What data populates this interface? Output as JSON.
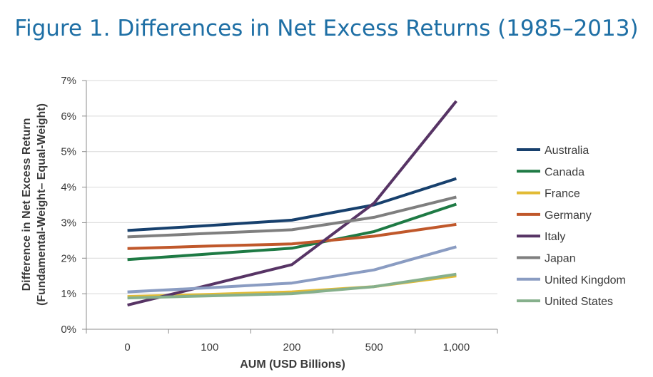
{
  "title": "Figure 1. Differences in Net Excess Returns (1985–2013)",
  "chart_data": {
    "type": "line",
    "title": "Figure 1. Differences in Net Excess Returns (1985–2013)",
    "xlabel": "AUM (USD Billions)",
    "ylabel_line1": "Difference in Net Excess Return",
    "ylabel_line2": "(Fundamental-Weight– Equal-Weight)",
    "categories": [
      "0",
      "100",
      "200",
      "500",
      "1,000"
    ],
    "y_ticks": [
      "0%",
      "1%",
      "2%",
      "3%",
      "4%",
      "5%",
      "6%",
      "7%"
    ],
    "ylim": [
      0,
      7
    ],
    "y_unit": "%",
    "grid": "horizontal",
    "legend_position": "right",
    "series": [
      {
        "name": "Australia",
        "color": "#17406d",
        "values": [
          2.78,
          2.92,
          3.07,
          3.5,
          4.24
        ]
      },
      {
        "name": "Canada",
        "color": "#1e7a44",
        "values": [
          1.96,
          2.12,
          2.28,
          2.75,
          3.52
        ]
      },
      {
        "name": "France",
        "color": "#e2bb35",
        "values": [
          0.92,
          0.98,
          1.05,
          1.2,
          1.5
        ]
      },
      {
        "name": "Germany",
        "color": "#c0582b",
        "values": [
          2.27,
          2.34,
          2.4,
          2.62,
          2.95
        ]
      },
      {
        "name": "Italy",
        "color": "#573465",
        "values": [
          0.68,
          1.25,
          1.82,
          3.55,
          6.42
        ]
      },
      {
        "name": "Japan",
        "color": "#7f7f7f",
        "values": [
          2.6,
          2.7,
          2.8,
          3.15,
          3.72
        ]
      },
      {
        "name": "United Kingdom",
        "color": "#8a9cc2",
        "values": [
          1.05,
          1.17,
          1.3,
          1.67,
          2.32
        ]
      },
      {
        "name": "United States",
        "color": "#86b08c",
        "values": [
          0.88,
          0.94,
          1.0,
          1.2,
          1.55
        ]
      }
    ]
  }
}
